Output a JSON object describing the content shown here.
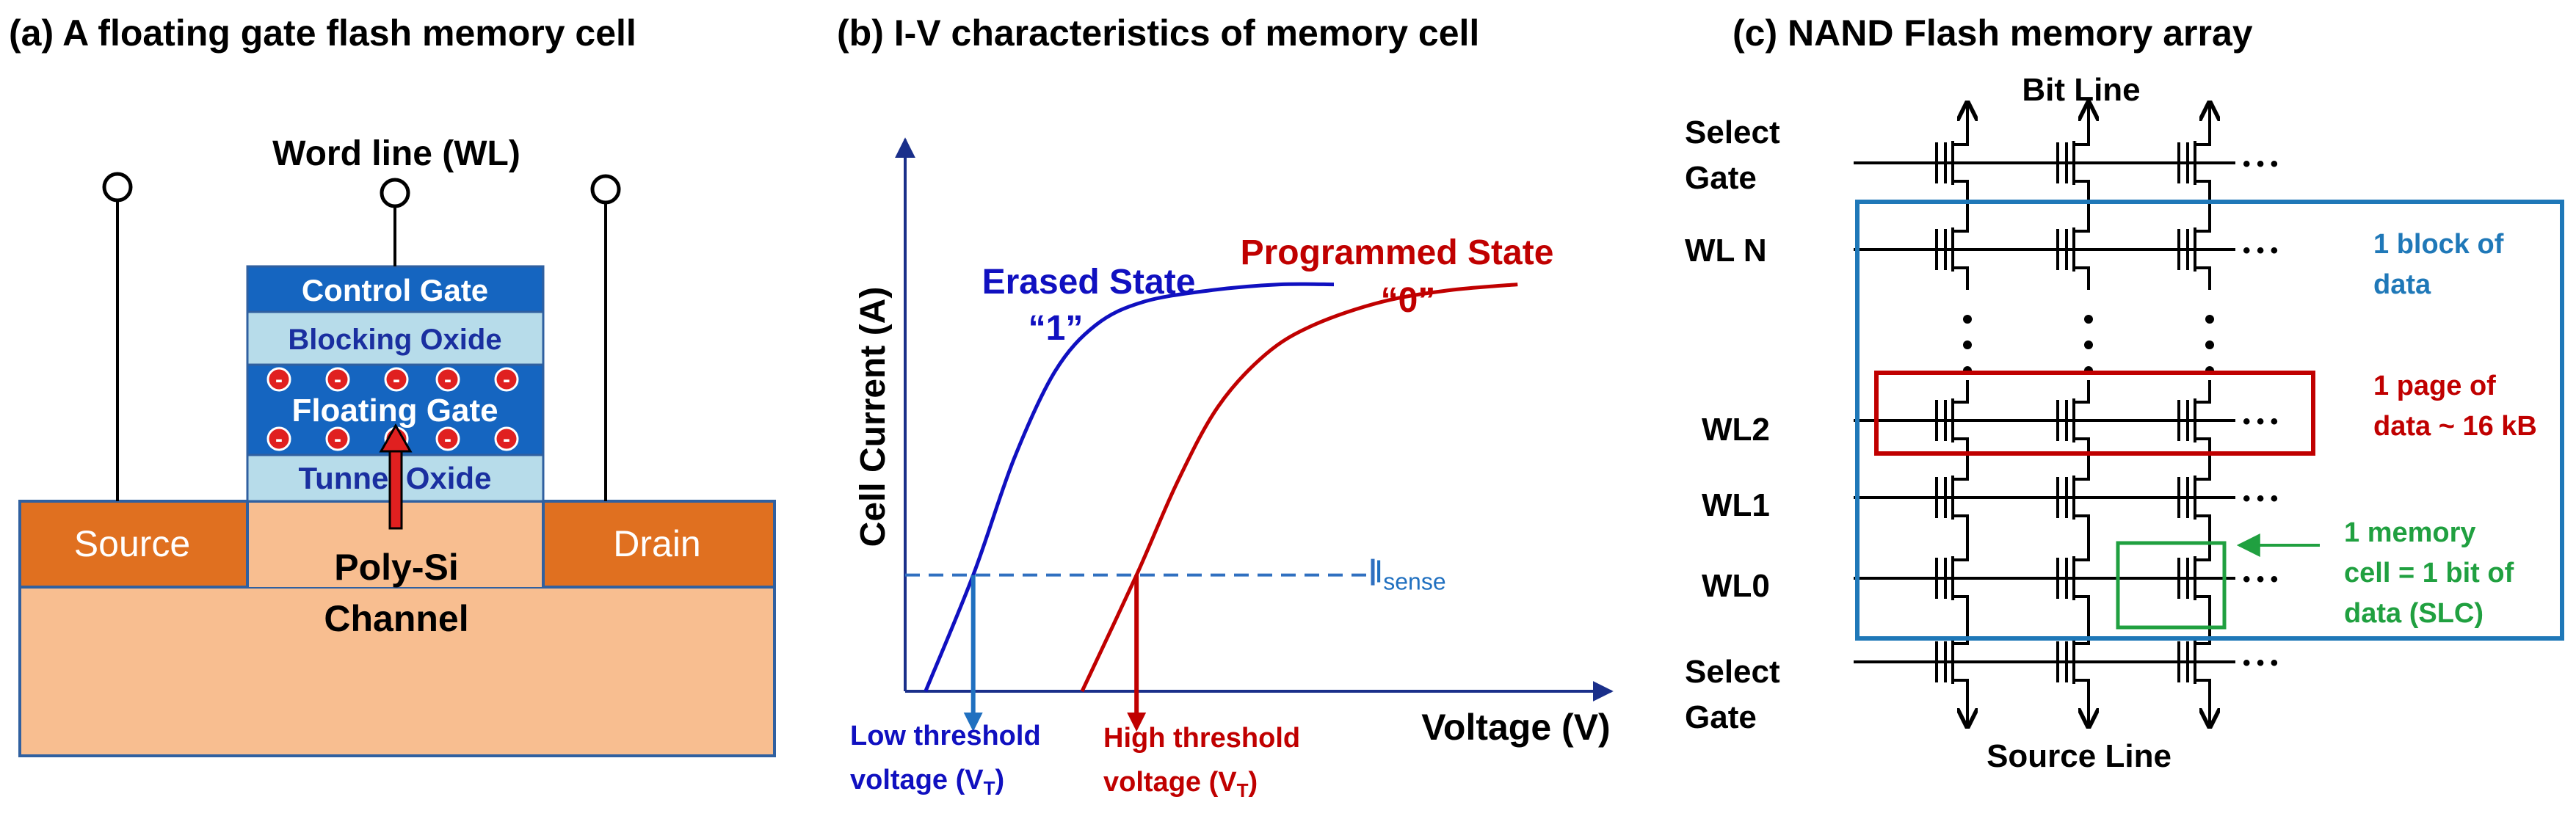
{
  "panel_a": {
    "title": "(a) A floating gate flash memory cell",
    "word_line": "Word line (WL)",
    "control_gate": "Control Gate",
    "blocking_oxide": "Blocking Oxide",
    "floating_gate": "Floating Gate",
    "tunnel_oxide": "Tunnel Oxide",
    "source": "Source",
    "drain": "Drain",
    "channel_line1": "Poly-Si",
    "channel_line2": "Channel",
    "electron_symbol": "-",
    "colors": {
      "gate_blue": "#1565c0",
      "oxide": "#b7dcea",
      "contact": "#e07020",
      "substrate": "#f8be90",
      "electron": "#e02020"
    }
  },
  "panel_b": {
    "title": "(b) I-V characteristics of memory cell",
    "erased_state": "Erased State",
    "erased_value": "“1”",
    "programmed_state": "Programmed  State",
    "programmed_value": "“0”",
    "ylabel": "Cell Current (A)",
    "xlabel": "Voltage (V)",
    "isense_main": "I",
    "isense_sub": "sense",
    "low_threshold_line1": "Low threshold",
    "low_threshold_line2": "voltage (V",
    "low_threshold_sub": "T",
    "high_threshold_line1": "High threshold",
    "high_threshold_line2": "voltage (V",
    "high_threshold_sub": "T",
    "close_paren": ")",
    "colors": {
      "erased": "#1010c0",
      "programmed": "#c00000",
      "sense": "#3070c0"
    }
  },
  "panel_c": {
    "title": "(c) NAND Flash memory array",
    "bit_line": "Bit Line",
    "source_line": "Source Line",
    "rows": [
      {
        "line1": "Select",
        "line2": "Gate"
      },
      {
        "line1": "WL N"
      },
      {
        "line1": "WL2"
      },
      {
        "line1": "WL1"
      },
      {
        "line1": "WL0"
      },
      {
        "line1": "Select",
        "line2": "Gate"
      }
    ],
    "ellipsis": "• • •",
    "block_label_line1": "1 block of",
    "block_label_line2": "data",
    "page_label_line1": "1 page of",
    "page_label_line2": "data ~ 16 kB",
    "cell_label_line1": "1 memory",
    "cell_label_line2": "cell = 1 bit of",
    "cell_label_line3": "data (SLC)",
    "colors": {
      "block": "#1f78b8",
      "page": "#c00000",
      "cell": "#20a040"
    }
  },
  "chart_data": {
    "type": "line",
    "title": "(b) I-V characteristics of memory cell",
    "xlabel": "Voltage (V)",
    "ylabel": "Cell Current (A)",
    "xlim": [
      0,
      10
    ],
    "ylim": [
      0,
      10
    ],
    "sense_level": 2.0,
    "series": [
      {
        "name": "Erased State “1”",
        "threshold": 1.0,
        "saturation": 7.0,
        "x": [
          0.3,
          1.0,
          1.6,
          2.2,
          2.8,
          3.5,
          4.5,
          5.5,
          6.3
        ],
        "y": [
          0.0,
          2.0,
          4.0,
          5.5,
          6.3,
          6.7,
          6.9,
          7.0,
          7.0
        ]
      },
      {
        "name": "Programmed State “0”",
        "threshold": 3.4,
        "saturation": 7.0,
        "x": [
          2.6,
          3.4,
          4.0,
          4.6,
          5.3,
          6.0,
          7.0,
          8.0,
          9.0
        ],
        "y": [
          0.0,
          2.0,
          3.6,
          4.9,
          5.8,
          6.3,
          6.7,
          6.9,
          7.0
        ]
      }
    ]
  }
}
